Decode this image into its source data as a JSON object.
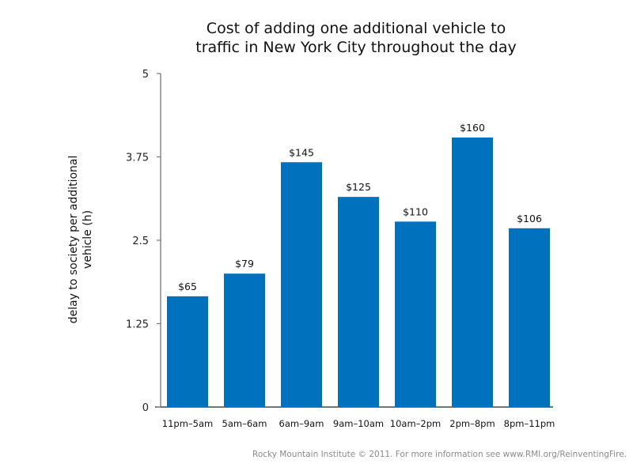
{
  "chart_data": {
    "type": "bar",
    "title_lines": [
      "Cost of adding one additional vehicle to",
      "traffic in New York City throughout the day"
    ],
    "xlabel": "",
    "ylabel_lines": [
      "delay to society per additional",
      "vehicle (h)"
    ],
    "categories": [
      "11pm–5am",
      "5am–6am",
      "6am–9am",
      "9am–10am",
      "10am–2pm",
      "2pm–8pm",
      "8pm–11pm"
    ],
    "values": [
      1.66,
      2.0,
      3.67,
      3.15,
      2.78,
      4.04,
      2.68
    ],
    "data_labels": [
      "$65",
      "$79",
      "$145",
      "$125",
      "$110",
      "$160",
      "$106"
    ],
    "ylim": [
      0,
      5
    ],
    "yticks": [
      0,
      1.25,
      2.5,
      3.75,
      5
    ],
    "ytick_labels": [
      "0",
      "1.25",
      "2.5",
      "3.75",
      "5"
    ],
    "grid": false,
    "legend": "none",
    "bar_color": "#0071bc"
  },
  "footer": "Rocky Mountain Institute © 2011. For more information see www.RMI.org/ReinventingFire."
}
